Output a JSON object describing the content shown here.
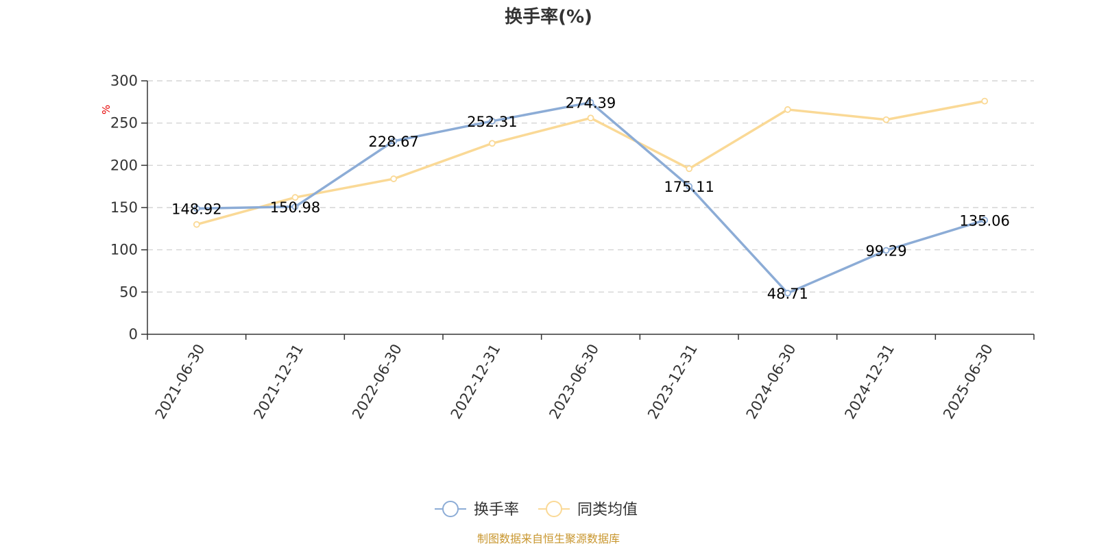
{
  "chart_data": {
    "type": "line",
    "title": "换手率(%)",
    "ylabel": "%",
    "xlabel": "",
    "ylim": [
      0,
      300
    ],
    "yticks": [
      0,
      50,
      100,
      150,
      200,
      250,
      300
    ],
    "grid": true,
    "legend_position": "bottom-center",
    "categories": [
      "2021-06-30",
      "2021-12-31",
      "2022-06-30",
      "2022-12-31",
      "2023-06-30",
      "2023-12-31",
      "2024-06-30",
      "2024-12-31",
      "2025-06-30"
    ],
    "series": [
      {
        "name": "换手率",
        "color": "#8CACD6",
        "values": [
          148.92,
          150.98,
          228.67,
          252.31,
          274.39,
          175.11,
          48.71,
          99.29,
          135.06
        ],
        "value_labels": [
          "148.92",
          "150.98",
          "228.67",
          "252.31",
          "274.39",
          "175.11",
          "48.71",
          "99.29",
          "135.06"
        ],
        "show_labels": true
      },
      {
        "name": "同类均值",
        "color": "#FAD996",
        "values": [
          130,
          162,
          184,
          226,
          256,
          196,
          266,
          254,
          276
        ],
        "show_labels": false
      }
    ]
  },
  "source_text": "制图数据来自恒生聚源数据库",
  "colors": {
    "axis": "#333333",
    "grid": "#cccccc",
    "unit": "#e60000",
    "source": "#c8962e"
  }
}
